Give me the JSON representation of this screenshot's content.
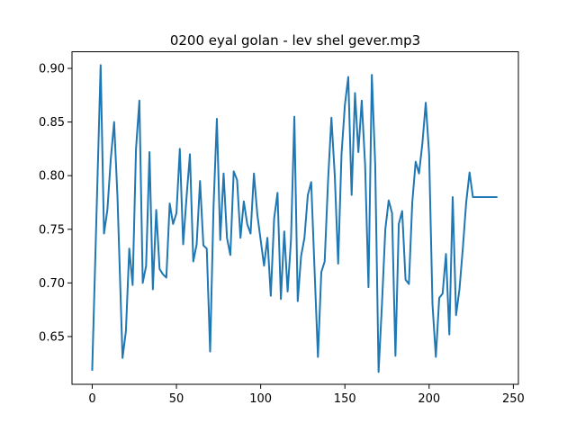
{
  "chart_data": {
    "type": "line",
    "title": "0200 eyal golan - lev shel gever.mp3",
    "xlabel": "",
    "ylabel": "",
    "xlim": [
      -12.0,
      253.0
    ],
    "ylim": [
      0.6055,
      0.9155
    ],
    "grid": false,
    "x_ticks": [
      {
        "value": 0,
        "label": "0"
      },
      {
        "value": 50,
        "label": "50"
      },
      {
        "value": 100,
        "label": "100"
      },
      {
        "value": 150,
        "label": "150"
      },
      {
        "value": 200,
        "label": "200"
      },
      {
        "value": 250,
        "label": "250"
      }
    ],
    "y_ticks": [
      {
        "value": 0.65,
        "label": "0.65"
      },
      {
        "value": 0.7,
        "label": "0.70"
      },
      {
        "value": 0.75,
        "label": "0.75"
      },
      {
        "value": 0.8,
        "label": "0.80"
      },
      {
        "value": 0.85,
        "label": "0.85"
      },
      {
        "value": 0.9,
        "label": "0.90"
      }
    ],
    "series": [
      {
        "color": "#1f77b4",
        "x": [
          0,
          5,
          7,
          9,
          11,
          13,
          15,
          18,
          20,
          22,
          24,
          26,
          28,
          30,
          32,
          34,
          36,
          38,
          40,
          42,
          44,
          46,
          48,
          50,
          52,
          54,
          56,
          58,
          60,
          62,
          64,
          66,
          68,
          70,
          72,
          74,
          76,
          78,
          80,
          82,
          84,
          86,
          88,
          90,
          92,
          94,
          96,
          98,
          100,
          102,
          104,
          106,
          108,
          110,
          112,
          114,
          116,
          118,
          120,
          122,
          124,
          126,
          128,
          130,
          132,
          134,
          136,
          138,
          140,
          142,
          144,
          146,
          148,
          150,
          152,
          154,
          156,
          158,
          160,
          162,
          164,
          166,
          168,
          170,
          172,
          174,
          176,
          178,
          180,
          182,
          184,
          186,
          188,
          190,
          192,
          194,
          196,
          198,
          200,
          202,
          204,
          206,
          208,
          210,
          212,
          214,
          216,
          218,
          220,
          222,
          224,
          226,
          228,
          230,
          232,
          234,
          236,
          238,
          240
        ],
        "values": [
          0.619,
          0.903,
          0.746,
          0.768,
          0.815,
          0.85,
          0.78,
          0.63,
          0.655,
          0.732,
          0.698,
          0.825,
          0.87,
          0.7,
          0.716,
          0.822,
          0.694,
          0.768,
          0.713,
          0.708,
          0.705,
          0.774,
          0.755,
          0.765,
          0.825,
          0.736,
          0.78,
          0.82,
          0.72,
          0.736,
          0.795,
          0.735,
          0.732,
          0.636,
          0.77,
          0.853,
          0.74,
          0.802,
          0.742,
          0.726,
          0.804,
          0.796,
          0.742,
          0.776,
          0.755,
          0.746,
          0.802,
          0.764,
          0.74,
          0.716,
          0.742,
          0.688,
          0.76,
          0.784,
          0.685,
          0.748,
          0.692,
          0.74,
          0.855,
          0.683,
          0.725,
          0.742,
          0.782,
          0.794,
          0.712,
          0.631,
          0.71,
          0.72,
          0.795,
          0.854,
          0.8,
          0.718,
          0.82,
          0.866,
          0.892,
          0.782,
          0.877,
          0.822,
          0.87,
          0.81,
          0.696,
          0.894,
          0.81,
          0.617,
          0.68,
          0.75,
          0.777,
          0.765,
          0.632,
          0.755,
          0.767,
          0.703,
          0.699,
          0.775,
          0.813,
          0.802,
          0.83,
          0.868,
          0.82,
          0.68,
          0.631,
          0.686,
          0.69,
          0.727,
          0.652,
          0.78,
          0.67,
          0.694,
          0.732,
          0.775,
          0.803,
          0.78,
          0.78,
          0.78,
          0.78,
          0.78,
          0.78,
          0.78,
          0.78
        ]
      }
    ]
  }
}
